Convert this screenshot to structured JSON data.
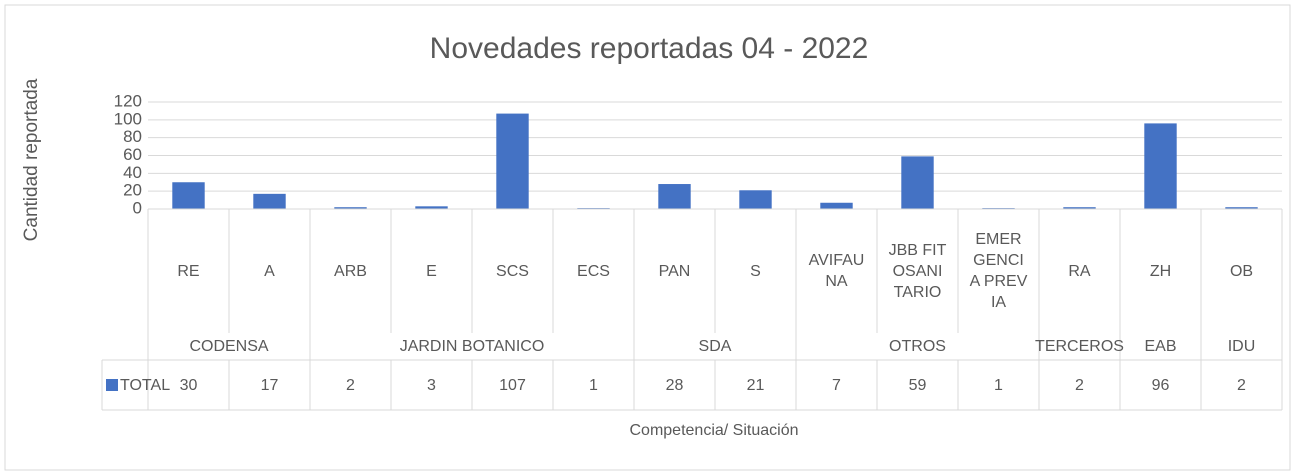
{
  "chart_data": {
    "type": "bar",
    "title": "Novedades reportadas 04 - 2022",
    "xlabel": "Competencia/ Situación",
    "ylabel": "Cantidad reportada",
    "groups": [
      {
        "name": "CODENSA",
        "categories": [
          "RE",
          "A"
        ]
      },
      {
        "name": "JARDIN BOTANICO",
        "categories": [
          "ARB",
          "E",
          "SCS",
          "ECS"
        ]
      },
      {
        "name": "SDA",
        "categories": [
          "PAN",
          "S"
        ]
      },
      {
        "name": "OTROS",
        "categories": [
          "AVIFAUNA",
          "JBB FITOSANITARIO",
          "EMERGENCIA PREVIA"
        ]
      },
      {
        "name": "TERCEROS",
        "categories": [
          "RA"
        ]
      },
      {
        "name": "EAB",
        "categories": [
          "ZH"
        ]
      },
      {
        "name": "IDU",
        "categories": [
          "OB"
        ]
      }
    ],
    "series": [
      {
        "name": "TOTAL",
        "color": "#4472c4",
        "values": [
          30,
          17,
          2,
          3,
          107,
          1,
          28,
          21,
          7,
          59,
          1,
          2,
          96,
          2
        ]
      }
    ],
    "ylim": [
      0,
      120
    ],
    "yticks": [
      0,
      20,
      40,
      60,
      80,
      100,
      120
    ],
    "grid": true
  }
}
